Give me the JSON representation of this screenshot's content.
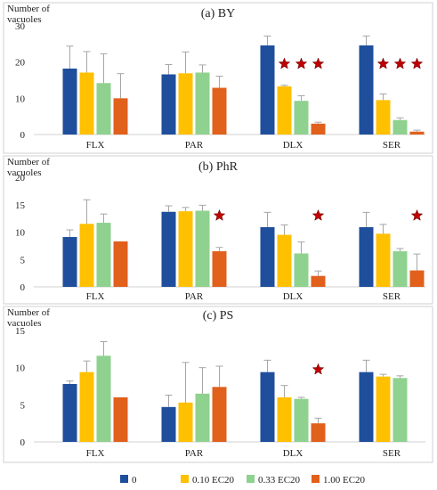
{
  "panels": [
    {
      "title": "(a) BY",
      "ylabel": [
        "Number of",
        "vacuoles"
      ],
      "ylim": [
        0,
        30
      ],
      "yticks": [
        0,
        10,
        20,
        30
      ],
      "gridlines": false,
      "values": [
        [
          18.2,
          17.1,
          14.2,
          10.0
        ],
        [
          16.6,
          16.9,
          17.1,
          12.9
        ],
        [
          24.6,
          13.3,
          9.3,
          3.0
        ],
        [
          24.6,
          9.5,
          4.0,
          0.8
        ]
      ],
      "errors": [
        [
          6.2,
          5.8,
          8.1,
          6.8
        ],
        [
          2.7,
          5.9,
          2.1,
          3.2
        ],
        [
          2.6,
          0.3,
          1.4,
          0.4
        ],
        [
          2.6,
          1.7,
          0.6,
          0.4
        ]
      ],
      "stars": [
        [
          2,
          1
        ],
        [
          2,
          2
        ],
        [
          2,
          3
        ],
        [
          3,
          1
        ],
        [
          3,
          2
        ],
        [
          3,
          3
        ]
      ]
    },
    {
      "title": "(b) PhR",
      "ylabel": [
        "Number of",
        "vacuoles"
      ],
      "ylim": [
        0,
        20
      ],
      "yticks": [
        0,
        5,
        10,
        15,
        20
      ],
      "gridlines": false,
      "values": [
        [
          9.1,
          11.5,
          11.7,
          8.3
        ],
        [
          13.7,
          13.8,
          13.9,
          6.5
        ],
        [
          10.9,
          9.5,
          6.1,
          2.0
        ],
        [
          10.9,
          9.7,
          6.5,
          3.0
        ]
      ],
      "errors": [
        [
          1.3,
          4.4,
          1.6,
          0
        ],
        [
          1.1,
          0.7,
          1.0,
          0.7
        ],
        [
          2.7,
          1.8,
          2.1,
          0.9
        ],
        [
          2.7,
          1.7,
          0.5,
          3.0
        ]
      ],
      "stars": [
        [
          1,
          3
        ],
        [
          2,
          3
        ],
        [
          3,
          3
        ]
      ]
    },
    {
      "title": "(c) PS",
      "ylabel": [
        "Number of",
        "vacuoles"
      ],
      "ylim": [
        0,
        15
      ],
      "yticks": [
        0,
        5,
        10,
        15
      ],
      "gridlines": false,
      "values": [
        [
          7.8,
          9.4,
          11.6,
          6.0
        ],
        [
          4.7,
          5.3,
          6.5,
          7.4
        ],
        [
          9.4,
          6.0,
          5.8,
          2.5
        ],
        [
          9.4,
          8.8,
          8.6,
          null
        ]
      ],
      "errors": [
        [
          0.4,
          1.5,
          1.9,
          0
        ],
        [
          1.6,
          5.4,
          3.5,
          2.8
        ],
        [
          1.6,
          1.6,
          0.2,
          0.7
        ],
        [
          1.6,
          0.3,
          0.3,
          0
        ]
      ],
      "stars": [
        [
          2,
          3
        ]
      ]
    }
  ],
  "chart_data": [
    {
      "type": "bar",
      "title": "(a) BY",
      "ylabel": "Number of vacuoles",
      "categories": [
        "FLX",
        "PAR",
        "DLX",
        "SER"
      ],
      "ylim": [
        0,
        30
      ],
      "series": [
        {
          "name": "0",
          "values": [
            18.2,
            16.6,
            24.6,
            24.6
          ]
        },
        {
          "name": "0.10 EC20",
          "values": [
            17.1,
            16.9,
            13.3,
            9.5
          ]
        },
        {
          "name": "0.33 EC20",
          "values": [
            14.2,
            17.1,
            9.3,
            4.0
          ]
        },
        {
          "name": "1.00 EC20",
          "values": [
            10.0,
            12.9,
            3.0,
            0.8
          ]
        }
      ]
    },
    {
      "type": "bar",
      "title": "(b) PhR",
      "ylabel": "Number of vacuoles",
      "categories": [
        "FLX",
        "PAR",
        "DLX",
        "SER"
      ],
      "ylim": [
        0,
        20
      ],
      "series": [
        {
          "name": "0",
          "values": [
            9.1,
            13.7,
            10.9,
            10.9
          ]
        },
        {
          "name": "0.10 EC20",
          "values": [
            11.5,
            13.8,
            9.5,
            9.7
          ]
        },
        {
          "name": "0.33 EC20",
          "values": [
            11.7,
            13.9,
            6.1,
            6.5
          ]
        },
        {
          "name": "1.00 EC20",
          "values": [
            8.3,
            6.5,
            2.0,
            3.0
          ]
        }
      ]
    },
    {
      "type": "bar",
      "title": "(c) PS",
      "ylabel": "Number of vacuoles",
      "categories": [
        "FLX",
        "PAR",
        "DLX",
        "SER"
      ],
      "ylim": [
        0,
        15
      ],
      "series": [
        {
          "name": "0",
          "values": [
            7.8,
            4.7,
            9.4,
            9.4
          ]
        },
        {
          "name": "0.10 EC20",
          "values": [
            9.4,
            5.3,
            6.0,
            8.8
          ]
        },
        {
          "name": "0.33 EC20",
          "values": [
            11.6,
            6.5,
            5.8,
            8.6
          ]
        },
        {
          "name": "1.00 EC20",
          "values": [
            6.0,
            7.4,
            2.5,
            null
          ]
        }
      ]
    }
  ],
  "categories": [
    "FLX",
    "PAR",
    "DLX",
    "SER"
  ],
  "legend": {
    "placement": "bottom",
    "items": [
      {
        "name": "0",
        "color": "#1f4e9c"
      },
      {
        "name": "0.10 EC20",
        "color": "#ffc000"
      },
      {
        "name": "0.33 EC20",
        "color": "#8fd18f"
      },
      {
        "name": "1.00 EC20",
        "color": "#e0601c"
      }
    ]
  },
  "colors": {
    "error_bar": "#a6a6a6",
    "star_fill": "#c00000",
    "panel_border": "#d0d0d0",
    "axis": "#d0d0d0"
  },
  "star_glyph": "star-icon"
}
